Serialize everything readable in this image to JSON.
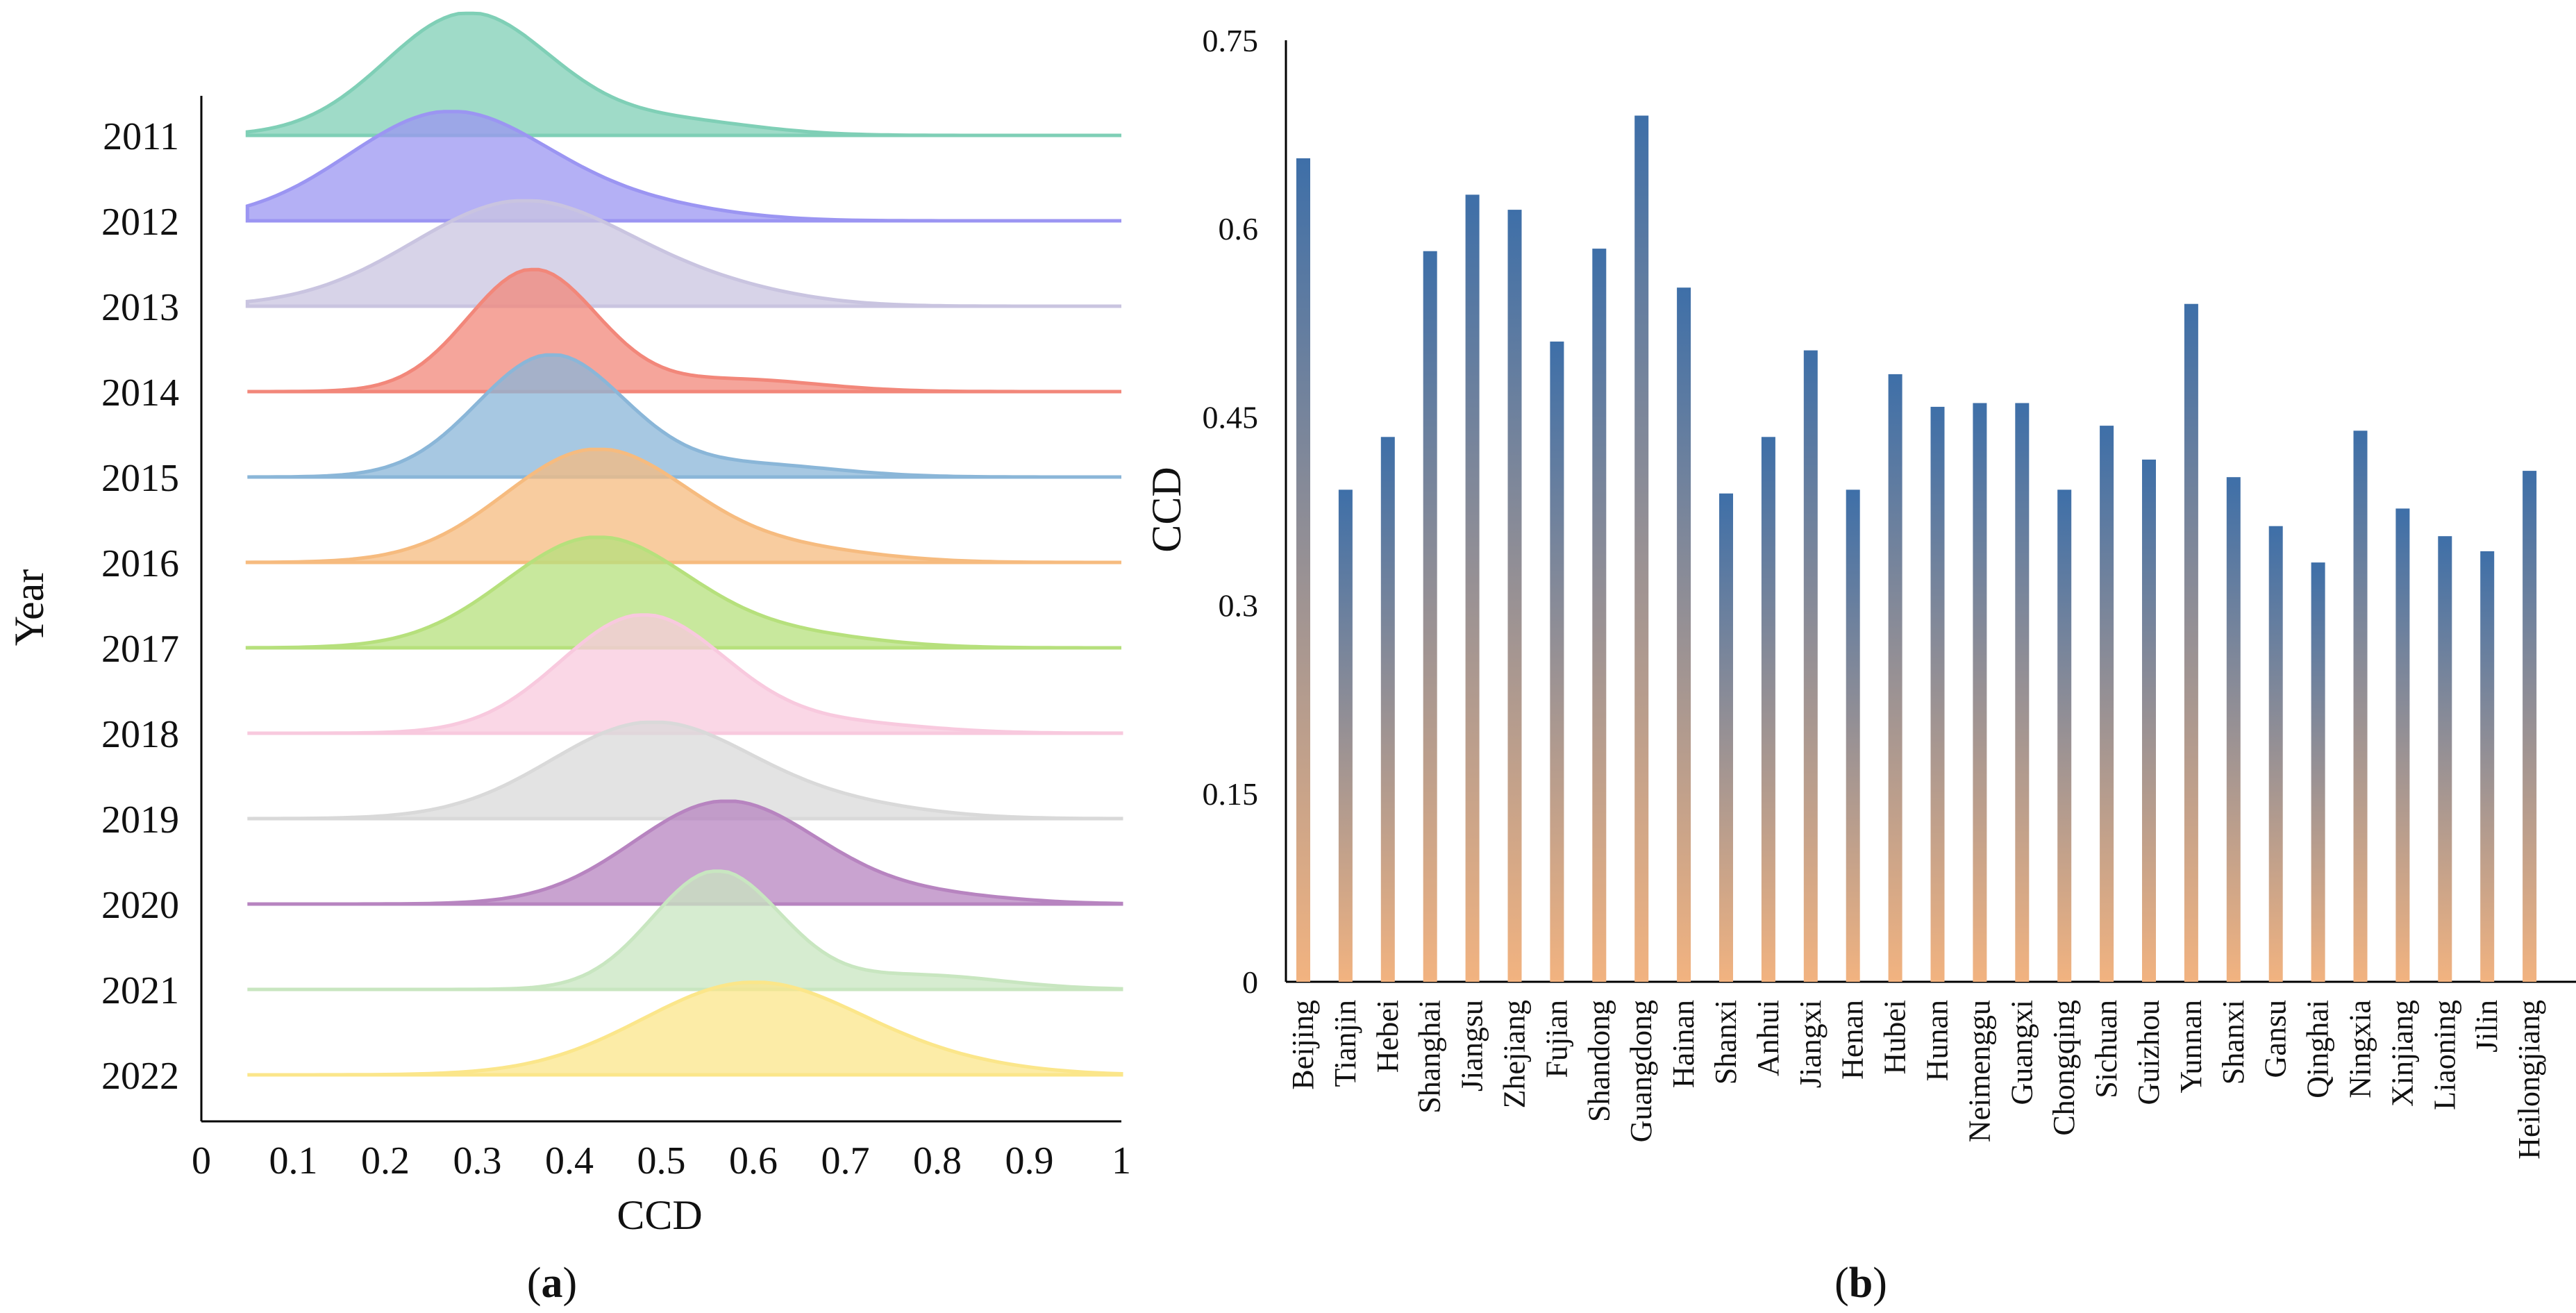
{
  "chart_data": [
    {
      "panel": "a",
      "type": "ridgeline",
      "panel_label": "(a)",
      "panel_label_letter": "a",
      "xlabel": "CCD",
      "ylabel": "Year",
      "xlim": [
        0,
        1
      ],
      "xticks": [
        "0",
        "0.1",
        "0.2",
        "0.3",
        "0.4",
        "0.5",
        "0.6",
        "0.7",
        "0.8",
        "0.9",
        "1"
      ],
      "series": [
        {
          "name": "2011",
          "color": "#7fcfb6",
          "peak": 0.29,
          "width": 0.09,
          "height": 0.95,
          "tail": 0.12
        },
        {
          "name": "2012",
          "color": "#9b95f2",
          "peak": 0.27,
          "width": 0.11,
          "height": 0.85,
          "tail": 0.1
        },
        {
          "name": "2013",
          "color": "#c9c4e0",
          "peak": 0.35,
          "width": 0.12,
          "height": 0.82,
          "tail": 0.1
        },
        {
          "name": "2014",
          "color": "#f2877a",
          "peak": 0.36,
          "width": 0.07,
          "height": 0.95,
          "tail": 0.1
        },
        {
          "name": "2015",
          "color": "#8ab6d8",
          "peak": 0.38,
          "width": 0.08,
          "height": 0.95,
          "tail": 0.1
        },
        {
          "name": "2016",
          "color": "#f6bb7f",
          "peak": 0.43,
          "width": 0.1,
          "height": 0.88,
          "tail": 0.1
        },
        {
          "name": "2017",
          "color": "#b6e07c",
          "peak": 0.43,
          "width": 0.1,
          "height": 0.86,
          "tail": 0.1
        },
        {
          "name": "2018",
          "color": "#f8c9de",
          "peak": 0.48,
          "width": 0.09,
          "height": 0.92,
          "tail": 0.08
        },
        {
          "name": "2019",
          "color": "#d9d9d9",
          "peak": 0.49,
          "width": 0.11,
          "height": 0.75,
          "tail": 0.1
        },
        {
          "name": "2020",
          "color": "#b784c0",
          "peak": 0.57,
          "width": 0.1,
          "height": 0.8,
          "tail": 0.08
        },
        {
          "name": "2021",
          "color": "#c8e6c0",
          "peak": 0.56,
          "width": 0.07,
          "height": 0.92,
          "tail": 0.12
        },
        {
          "name": "2022",
          "color": "#fbe68a",
          "peak": 0.6,
          "width": 0.12,
          "height": 0.72,
          "tail": 0.06
        }
      ]
    },
    {
      "panel": "b",
      "type": "bar",
      "panel_label": "(b)",
      "panel_label_letter": "b",
      "ylabel": "CCD",
      "ylim": [
        0,
        0.75
      ],
      "yticks": [
        "0",
        "0.15",
        "0.3",
        "0.45",
        "0.6",
        "0.75"
      ],
      "categories": [
        "Beijing",
        "Tianjin",
        "Hebei",
        "Shanghai",
        "Jiangsu",
        "Zhejiang",
        "Fujian",
        "Shandong",
        "Guangdong",
        "Hainan",
        "Shanxi",
        "Anhui",
        "Jiangxi",
        "Henan",
        "Hubei",
        "Hunan",
        "Neimenggu",
        "Guangxi",
        "Chongqing",
        "Sichuan",
        "Guizhou",
        "Yunnan",
        "Shanxi",
        "Gansu",
        "Qinghai",
        "Ningxia",
        "Xinjiang",
        "Liaoning",
        "Jilin",
        "Heilongjiang"
      ],
      "values": [
        0.656,
        0.392,
        0.434,
        0.582,
        0.627,
        0.615,
        0.51,
        0.584,
        0.69,
        0.553,
        0.389,
        0.434,
        0.503,
        0.392,
        0.484,
        0.458,
        0.461,
        0.461,
        0.392,
        0.443,
        0.416,
        0.54,
        0.402,
        0.363,
        0.334,
        0.439,
        0.377,
        0.355,
        0.343,
        0.407
      ],
      "gradient": {
        "top": "#3e6fa8",
        "bottom": "#f2b380"
      }
    }
  ]
}
